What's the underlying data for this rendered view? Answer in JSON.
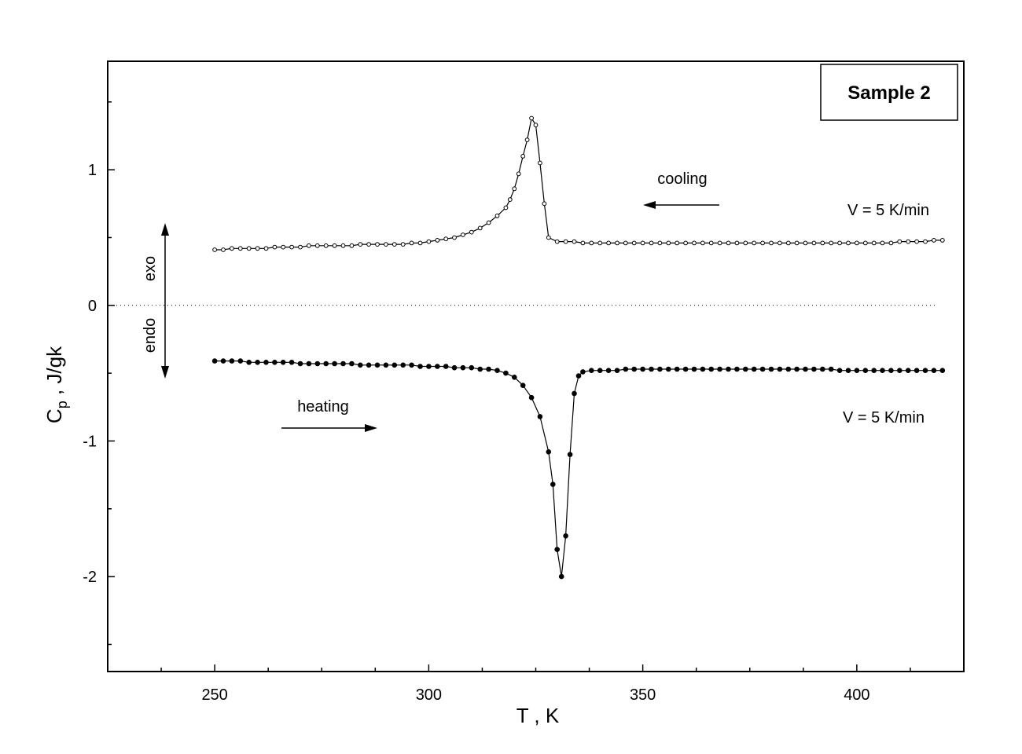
{
  "chart_data": {
    "type": "scatter",
    "title": "",
    "xlabel": "T , K",
    "ylabel": "C",
    "ylabel_sub": "p",
    "ylabel_suffix": " , J/gk",
    "xlim": [
      225,
      425
    ],
    "ylim": [
      -2.7,
      1.8
    ],
    "xticks": [
      250,
      300,
      350,
      400
    ],
    "xtick_labels": [
      "250",
      "300",
      "350",
      "400"
    ],
    "yticks": [
      -2,
      -1,
      0,
      1
    ],
    "ytick_labels": [
      "-2",
      "-1",
      "0",
      "1"
    ],
    "grid": false,
    "zero_line": true,
    "series": [
      {
        "marker": "open-circle",
        "x": [
          250,
          252,
          254,
          256,
          258,
          260,
          262,
          264,
          266,
          268,
          270,
          272,
          274,
          276,
          278,
          280,
          282,
          284,
          286,
          288,
          290,
          292,
          294,
          296,
          298,
          300,
          302,
          304,
          306,
          308,
          310,
          312,
          314,
          316,
          318,
          319,
          320,
          321,
          322,
          323,
          324,
          325,
          326,
          327,
          328,
          330,
          332,
          334,
          336,
          338,
          340,
          342,
          344,
          346,
          348,
          350,
          352,
          354,
          356,
          358,
          360,
          362,
          364,
          366,
          368,
          370,
          372,
          374,
          376,
          378,
          380,
          382,
          384,
          386,
          388,
          390,
          392,
          394,
          396,
          398,
          400,
          402,
          404,
          406,
          408,
          410,
          412,
          414,
          416,
          418,
          420
        ],
        "y": [
          0.41,
          0.41,
          0.42,
          0.42,
          0.42,
          0.42,
          0.42,
          0.43,
          0.43,
          0.43,
          0.43,
          0.44,
          0.44,
          0.44,
          0.44,
          0.44,
          0.44,
          0.45,
          0.45,
          0.45,
          0.45,
          0.45,
          0.45,
          0.46,
          0.46,
          0.47,
          0.48,
          0.49,
          0.5,
          0.52,
          0.54,
          0.57,
          0.61,
          0.66,
          0.72,
          0.78,
          0.86,
          0.97,
          1.1,
          1.22,
          1.38,
          1.33,
          1.05,
          0.75,
          0.5,
          0.47,
          0.47,
          0.47,
          0.46,
          0.46,
          0.46,
          0.46,
          0.46,
          0.46,
          0.46,
          0.46,
          0.46,
          0.46,
          0.46,
          0.46,
          0.46,
          0.46,
          0.46,
          0.46,
          0.46,
          0.46,
          0.46,
          0.46,
          0.46,
          0.46,
          0.46,
          0.46,
          0.46,
          0.46,
          0.46,
          0.46,
          0.46,
          0.46,
          0.46,
          0.46,
          0.46,
          0.46,
          0.46,
          0.46,
          0.46,
          0.47,
          0.47,
          0.47,
          0.47,
          0.48,
          0.48
        ]
      },
      {
        "marker": "filled-circle",
        "x": [
          250,
          252,
          254,
          256,
          258,
          260,
          262,
          264,
          266,
          268,
          270,
          272,
          274,
          276,
          278,
          280,
          282,
          284,
          286,
          288,
          290,
          292,
          294,
          296,
          298,
          300,
          302,
          304,
          306,
          308,
          310,
          312,
          314,
          316,
          318,
          320,
          322,
          324,
          326,
          328,
          329,
          330,
          331,
          332,
          333,
          334,
          335,
          336,
          338,
          340,
          342,
          344,
          346,
          348,
          350,
          352,
          354,
          356,
          358,
          360,
          362,
          364,
          366,
          368,
          370,
          372,
          374,
          376,
          378,
          380,
          382,
          384,
          386,
          388,
          390,
          392,
          394,
          396,
          398,
          400,
          402,
          404,
          406,
          408,
          410,
          412,
          414,
          416,
          418,
          420
        ],
        "y": [
          -0.41,
          -0.41,
          -0.41,
          -0.41,
          -0.42,
          -0.42,
          -0.42,
          -0.42,
          -0.42,
          -0.42,
          -0.43,
          -0.43,
          -0.43,
          -0.43,
          -0.43,
          -0.43,
          -0.43,
          -0.44,
          -0.44,
          -0.44,
          -0.44,
          -0.44,
          -0.44,
          -0.44,
          -0.45,
          -0.45,
          -0.45,
          -0.45,
          -0.46,
          -0.46,
          -0.46,
          -0.47,
          -0.47,
          -0.48,
          -0.5,
          -0.53,
          -0.59,
          -0.68,
          -0.82,
          -1.08,
          -1.32,
          -1.8,
          -2.0,
          -1.7,
          -1.1,
          -0.65,
          -0.52,
          -0.49,
          -0.48,
          -0.48,
          -0.48,
          -0.48,
          -0.47,
          -0.47,
          -0.47,
          -0.47,
          -0.47,
          -0.47,
          -0.47,
          -0.47,
          -0.47,
          -0.47,
          -0.47,
          -0.47,
          -0.47,
          -0.47,
          -0.47,
          -0.47,
          -0.47,
          -0.47,
          -0.47,
          -0.47,
          -0.47,
          -0.47,
          -0.47,
          -0.47,
          -0.47,
          -0.48,
          -0.48,
          -0.48,
          -0.48,
          -0.48,
          -0.48,
          -0.48,
          -0.48,
          -0.48,
          -0.48,
          -0.48,
          -0.48,
          -0.48
        ]
      }
    ],
    "annotations": {
      "sample_label": "Sample 2",
      "cooling_label": "cooling",
      "heating_label": "heating",
      "rate_top": "V = 5 K/min",
      "rate_bottom": "V = 5 K/min",
      "exo_label": "exo",
      "endo_label": "endo"
    }
  }
}
